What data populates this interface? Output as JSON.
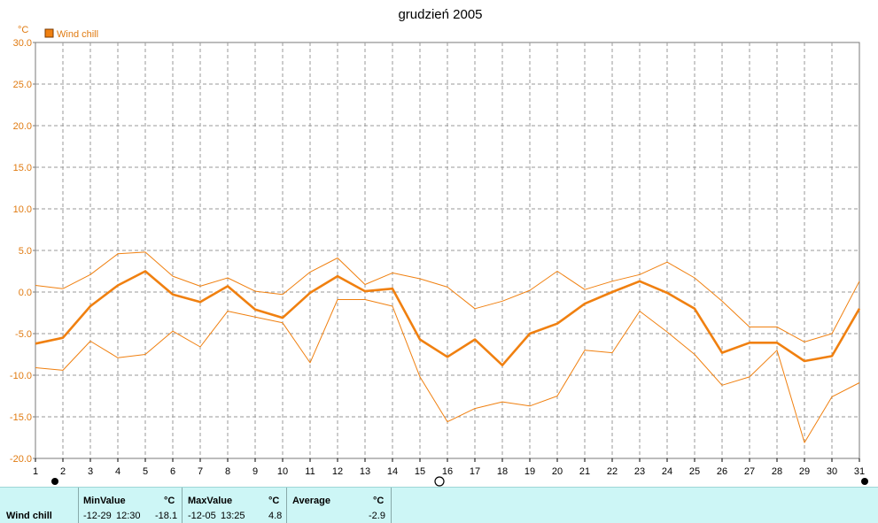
{
  "chart_data": {
    "type": "line",
    "title": "grudzień 2005",
    "y_unit": "°C",
    "ylim": [
      -20,
      30
    ],
    "y_ticks": [
      "30.0",
      "25.0",
      "20.0",
      "15.0",
      "10.0",
      "5.0",
      "0.0",
      "-5.0",
      "-10.0",
      "-15.0",
      "-20.0"
    ],
    "y_tick_values": [
      30,
      25,
      20,
      15,
      10,
      5,
      0,
      -5,
      -10,
      -15,
      -20
    ],
    "x": [
      1,
      2,
      3,
      4,
      5,
      6,
      7,
      8,
      9,
      10,
      11,
      12,
      13,
      14,
      15,
      16,
      17,
      18,
      19,
      20,
      21,
      22,
      23,
      24,
      25,
      26,
      27,
      28,
      29,
      30,
      31
    ],
    "x_labels": [
      "1",
      "2",
      "3",
      "4",
      "5",
      "6",
      "7",
      "8",
      "9",
      "10",
      "11",
      "12",
      "13",
      "14",
      "15",
      "16",
      "17",
      "18",
      "19",
      "20",
      "21",
      "22",
      "23",
      "24",
      "25",
      "26",
      "27",
      "28",
      "29",
      "30",
      "31"
    ],
    "grid": true,
    "legend_position": "top-left",
    "series": [
      {
        "name": "Wind chill",
        "role": "average",
        "color": "#f08010",
        "values": [
          -6.2,
          -5.5,
          -1.7,
          0.8,
          2.5,
          -0.3,
          -1.2,
          0.7,
          -2.1,
          -3.1,
          -0.1,
          1.9,
          0.1,
          0.4,
          -5.7,
          -7.8,
          -5.7,
          -8.8,
          -5.0,
          -3.8,
          -1.4,
          0.0,
          1.3,
          -0.1,
          -2.0,
          -7.3,
          -6.1,
          -6.1,
          -8.3,
          -7.7,
          -2.0
        ]
      },
      {
        "role": "max",
        "color": "#f08010",
        "values": [
          0.8,
          0.4,
          2.1,
          4.6,
          4.8,
          1.9,
          0.7,
          1.7,
          0.1,
          -0.3,
          2.4,
          4.1,
          0.9,
          2.3,
          1.6,
          0.6,
          -2.0,
          -1.1,
          0.2,
          2.5,
          0.3,
          1.3,
          2.1,
          3.6,
          1.7,
          -1.1,
          -4.2,
          -4.2,
          -6.0,
          -5.0,
          1.3
        ]
      },
      {
        "role": "min",
        "color": "#f08010",
        "values": [
          -9.1,
          -9.4,
          -5.9,
          -7.9,
          -7.5,
          -4.7,
          -6.6,
          -2.3,
          -3.0,
          -3.7,
          -8.5,
          -0.9,
          -0.9,
          -1.7,
          -10.2,
          -15.6,
          -14.0,
          -13.2,
          -13.7,
          -12.5,
          -7.0,
          -7.3,
          -2.3,
          -4.8,
          -7.5,
          -11.2,
          -10.2,
          -7.0,
          -18.1,
          -12.6,
          -10.9
        ]
      }
    ]
  },
  "summary": {
    "row_label": "Wind chill",
    "min": {
      "header": "MinValue",
      "unit": "°C",
      "date": "-12-29",
      "time": "12:30",
      "value": "-18.1"
    },
    "max": {
      "header": "MaxValue",
      "unit": "°C",
      "date": "-12-05",
      "time": "13:25",
      "value": "4.8"
    },
    "avg": {
      "header": "Average",
      "unit": "°C",
      "value": "-2.9"
    }
  }
}
